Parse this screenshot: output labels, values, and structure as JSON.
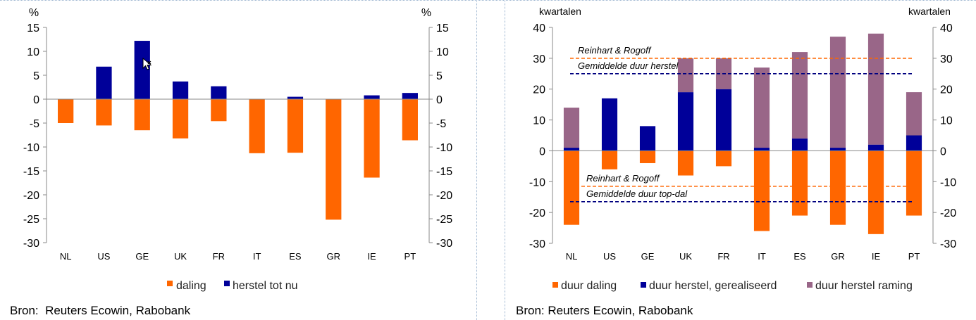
{
  "left_chart": {
    "chart_data": {
      "type": "bar",
      "unit_left": "%",
      "unit_right": "%",
      "categories": [
        "NL",
        "US",
        "GE",
        "UK",
        "FR",
        "IT",
        "ES",
        "GR",
        "IE",
        "PT"
      ],
      "series": [
        {
          "name": "daling",
          "color": "#ff6600",
          "values": [
            -5,
            -5.5,
            -6.5,
            -8.2,
            -4.6,
            -11.3,
            -11.2,
            -25.2,
            -16.4,
            -8.6
          ]
        },
        {
          "name": "herstel tot nu",
          "color": "#000099",
          "values": [
            0,
            6.8,
            12.2,
            3.7,
            2.7,
            0,
            0.5,
            0,
            0.8,
            1.3
          ]
        }
      ],
      "ylim": [
        -30,
        15
      ],
      "yticks": [
        "15",
        "10",
        "5",
        "0",
        "-5",
        "-10",
        "-15",
        "-20",
        "-25",
        "-30"
      ],
      "legend": [
        "daling",
        "herstel tot nu"
      ]
    },
    "source": "Bron:  Reuters Ecowin, Rabobank"
  },
  "right_chart": {
    "chart_data": {
      "type": "bar",
      "unit_left": "kwartalen",
      "unit_right": "kwartalen",
      "categories": [
        "NL",
        "US",
        "GE",
        "UK",
        "FR",
        "IT",
        "ES",
        "GR",
        "IE",
        "PT"
      ],
      "series": [
        {
          "name": "duur daling",
          "color": "#ff6600",
          "values": [
            -24,
            -6,
            -4,
            -8,
            -5,
            -26,
            -21,
            -24,
            -27,
            -21
          ]
        },
        {
          "name": "duur herstel, gerealiseerd",
          "color": "#000099",
          "values": [
            1,
            17,
            8,
            19,
            20,
            1,
            4,
            1,
            2,
            5
          ]
        },
        {
          "name": "duur herstel raming",
          "color": "#996688",
          "values": [
            13,
            0,
            0,
            11,
            10,
            26,
            28,
            36,
            36,
            14
          ]
        }
      ],
      "ylim": [
        -30,
        40
      ],
      "yticks": [
        "40",
        "30",
        "20",
        "10",
        "0",
        "-10",
        "-20",
        "-30"
      ],
      "reference_lines": [
        {
          "label": "Reinhart & Rogoff",
          "value": 30,
          "color": "#ff6600"
        },
        {
          "label": "Gemiddelde duur herstel",
          "value": 25,
          "color": "#000080"
        },
        {
          "label": "Reinhart & Rogoff",
          "value": -11.5,
          "color": "#ff6600"
        },
        {
          "label": "Gemiddelde duur top-dal",
          "value": -16.5,
          "color": "#000080"
        }
      ],
      "legend": [
        "duur daling",
        "duur herstel, gerealiseerd",
        "duur herstel raming"
      ]
    },
    "source": "Bron: Reuters Ecowin, Rabobank"
  }
}
